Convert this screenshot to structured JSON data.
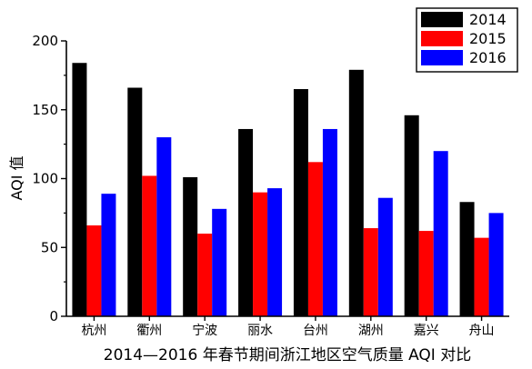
{
  "chart_data": {
    "type": "bar",
    "title": "2014—2016 年春节期间浙江地区空气质量 AQI 对比",
    "xlabel": "",
    "ylabel": "AQI 值",
    "ylim": [
      0,
      200
    ],
    "yticks": [
      "0",
      "50",
      "100",
      "150",
      "200"
    ],
    "grid": false,
    "legend_position": "top-right",
    "categories": [
      "杭州",
      "衢州",
      "宁波",
      "丽水",
      "台州",
      "湖州",
      "嘉兴",
      "舟山"
    ],
    "series": [
      {
        "name": "2014",
        "color": "#000000",
        "values": [
          184,
          166,
          101,
          136,
          165,
          179,
          146,
          83
        ]
      },
      {
        "name": "2015",
        "color": "#ff0000",
        "values": [
          66,
          102,
          60,
          90,
          112,
          64,
          62,
          57
        ]
      },
      {
        "name": "2016",
        "color": "#0000ff",
        "values": [
          89,
          130,
          78,
          93,
          136,
          86,
          120,
          75
        ]
      }
    ]
  }
}
